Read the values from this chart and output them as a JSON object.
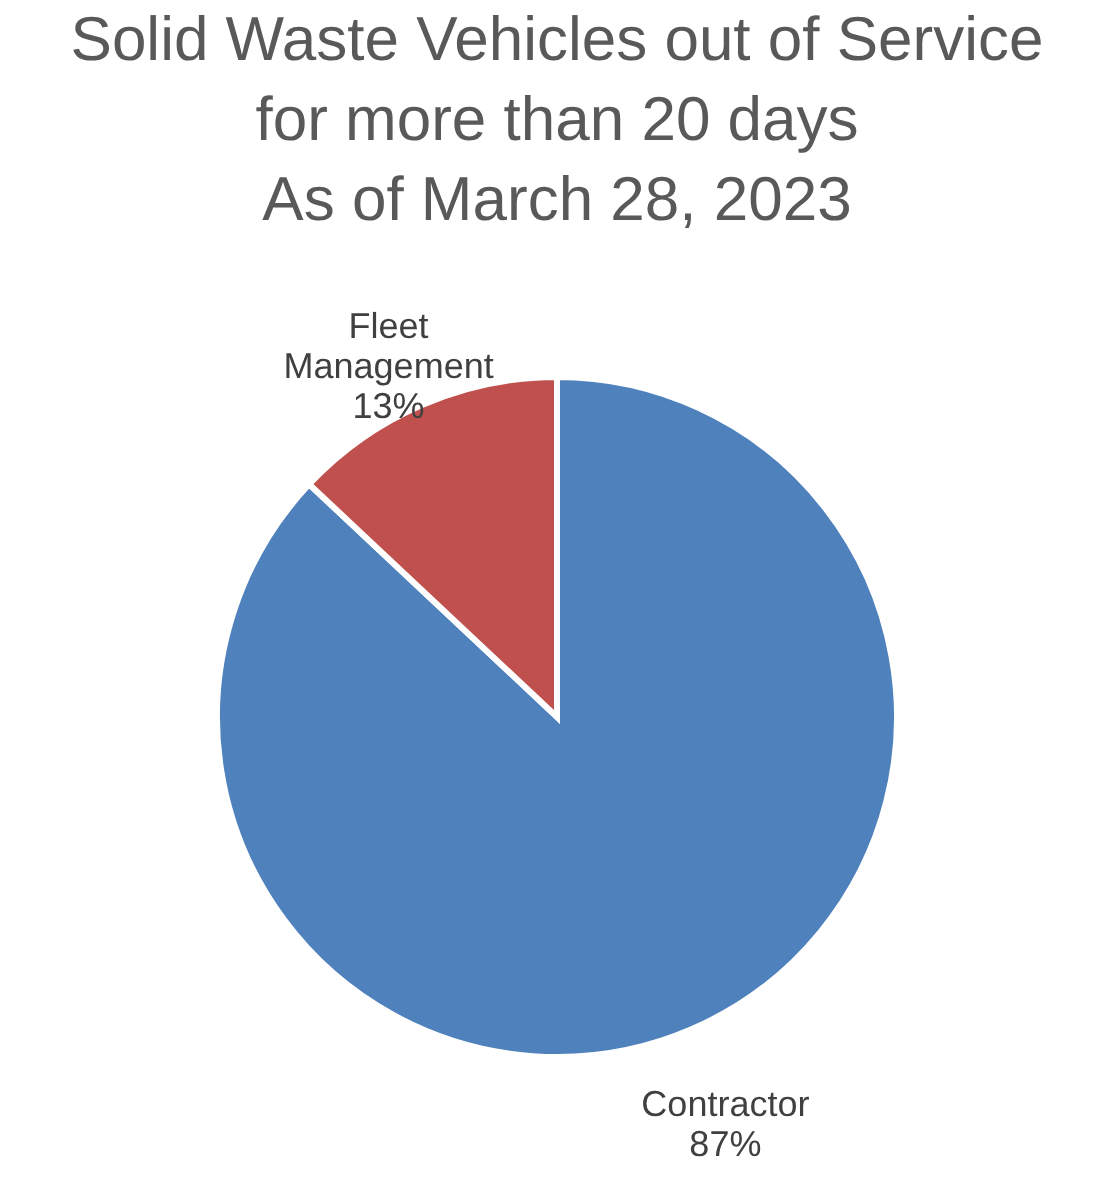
{
  "chart_data": {
    "type": "pie",
    "title": "Solid Waste Vehicles out of Service\nfor more than 20 days\nAs of March 28, 2023",
    "categories": [
      "Contractor",
      "Fleet Management"
    ],
    "values": [
      87,
      13
    ],
    "colors": [
      "#4f81bd",
      "#c0504d"
    ],
    "value_labels": [
      "87%",
      "13%"
    ],
    "legend": false
  }
}
